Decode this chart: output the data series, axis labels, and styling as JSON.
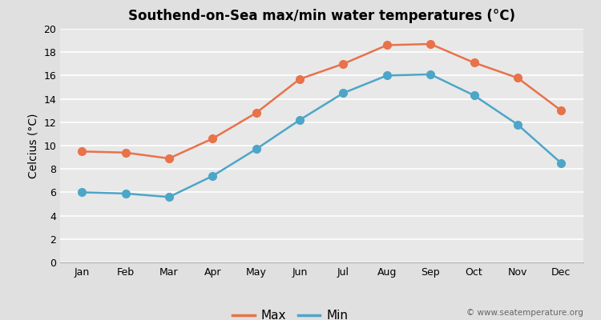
{
  "months": [
    "Jan",
    "Feb",
    "Mar",
    "Apr",
    "May",
    "Jun",
    "Jul",
    "Aug",
    "Sep",
    "Oct",
    "Nov",
    "Dec"
  ],
  "max_temps": [
    9.5,
    9.4,
    8.9,
    10.6,
    12.8,
    15.7,
    17.0,
    18.6,
    18.7,
    17.1,
    15.8,
    13.0
  ],
  "min_temps": [
    6.0,
    5.9,
    5.6,
    7.4,
    9.7,
    12.2,
    14.5,
    16.0,
    16.1,
    14.3,
    11.8,
    8.5
  ],
  "max_color": "#e8724a",
  "min_color": "#4da6c8",
  "bg_color": "#e0e0e0",
  "plot_bg_color": "#e8e8e8",
  "title": "Southend-on-Sea max/min water temperatures (°C)",
  "ylabel": "Celcius (°C)",
  "ylim": [
    0,
    20
  ],
  "yticks": [
    0,
    2,
    4,
    6,
    8,
    10,
    12,
    14,
    16,
    18,
    20
  ],
  "watermark": "© www.seatemperature.org",
  "legend_max": "Max",
  "legend_min": "Min",
  "title_fontsize": 12,
  "label_fontsize": 10,
  "tick_fontsize": 9,
  "marker": "o",
  "markersize": 7,
  "linewidth": 1.8
}
